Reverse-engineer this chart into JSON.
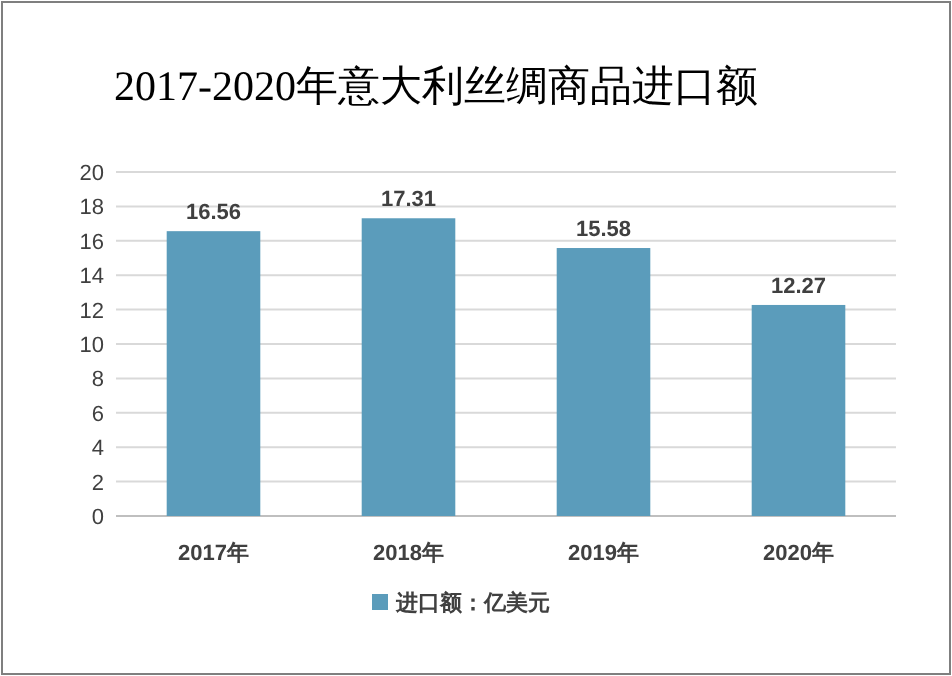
{
  "chart_data": {
    "type": "bar",
    "title": "2017-2020年意大利丝绸商品进口额",
    "categories": [
      "2017年",
      "2018年",
      "2019年",
      "2020年"
    ],
    "series": [
      {
        "name": "进口额：亿美元",
        "color": "#5b9cbb",
        "values": [
          16.56,
          17.31,
          15.58,
          12.27
        ]
      }
    ],
    "ylim": [
      0,
      20
    ],
    "yticks": [
      0,
      2,
      4,
      6,
      8,
      10,
      12,
      14,
      16,
      18,
      20
    ],
    "grid": "y",
    "legend": "bottom",
    "data_labels": true
  }
}
